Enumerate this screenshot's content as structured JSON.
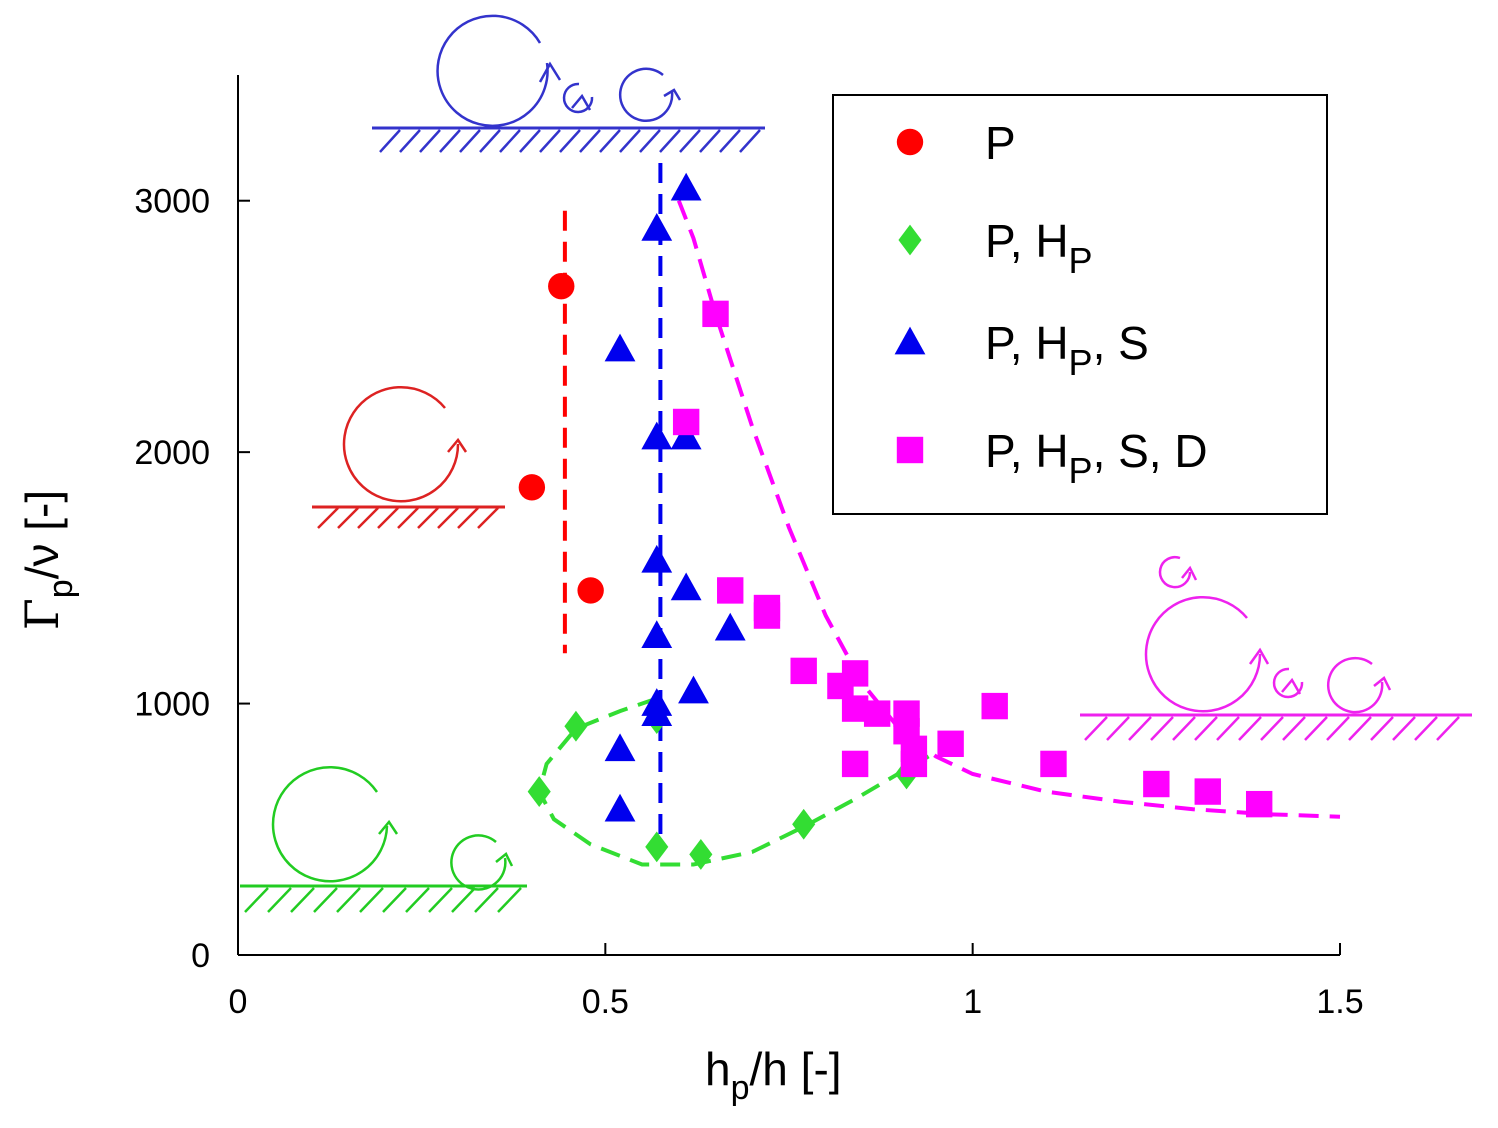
{
  "chart_data": {
    "type": "scatter",
    "title": "",
    "xlabel": {
      "main": "h",
      "sub": "p",
      "rest": "/h  [-]"
    },
    "ylabel": {
      "greek": "Γ",
      "sub": "p",
      "rest": "/ν [-]"
    },
    "xlim": [
      0,
      1.5
    ],
    "ylim": [
      0,
      3500
    ],
    "x_ticks": [
      {
        "v": 0,
        "label": "0"
      },
      {
        "v": 0.5,
        "label": "0.5"
      },
      {
        "v": 1,
        "label": "1"
      },
      {
        "v": 1.5,
        "label": "1.5"
      }
    ],
    "y_ticks": [
      {
        "v": 0,
        "label": "0"
      },
      {
        "v": 1000,
        "label": "1000"
      },
      {
        "v": 2000,
        "label": "2000"
      },
      {
        "v": 3000,
        "label": "3000"
      }
    ],
    "grid": false,
    "legend_position": "top-right",
    "series": [
      {
        "id": "P",
        "legend": [
          {
            "t": "P"
          }
        ],
        "marker": "circle",
        "color": "#ff0000",
        "points": [
          [
            0.44,
            2660
          ],
          [
            0.4,
            1860
          ],
          [
            0.48,
            1450
          ]
        ]
      },
      {
        "id": "P-Hp",
        "legend": [
          {
            "t": "P, H"
          },
          {
            "t": "P",
            "sub": true
          }
        ],
        "marker": "diamond",
        "color": "#33dd33",
        "points": [
          [
            0.46,
            910
          ],
          [
            0.41,
            650
          ],
          [
            0.57,
            940
          ],
          [
            0.57,
            430
          ],
          [
            0.63,
            400
          ],
          [
            0.77,
            520
          ],
          [
            0.91,
            720
          ]
        ]
      },
      {
        "id": "P-Hp-S",
        "legend": [
          {
            "t": "P, H"
          },
          {
            "t": "P",
            "sub": true
          },
          {
            "t": ", S"
          }
        ],
        "marker": "triangle",
        "color": "#0000ee",
        "points": [
          [
            0.61,
            3050
          ],
          [
            0.57,
            2890
          ],
          [
            0.52,
            2410
          ],
          [
            0.57,
            2060
          ],
          [
            0.61,
            2060
          ],
          [
            0.57,
            1570
          ],
          [
            0.61,
            1460
          ],
          [
            0.57,
            1270
          ],
          [
            0.67,
            1300
          ],
          [
            0.62,
            1050
          ],
          [
            0.57,
            1000
          ],
          [
            0.57,
            960
          ],
          [
            0.52,
            820
          ],
          [
            0.52,
            580
          ]
        ]
      },
      {
        "id": "P-Hp-S-D",
        "legend": [
          {
            "t": "P, H"
          },
          {
            "t": "P",
            "sub": true
          },
          {
            "t": ", S, D"
          }
        ],
        "marker": "square",
        "color": "#ff00ff",
        "points": [
          [
            0.65,
            2550
          ],
          [
            0.61,
            2120
          ],
          [
            0.67,
            1450
          ],
          [
            0.72,
            1380
          ],
          [
            0.72,
            1350
          ],
          [
            0.77,
            1130
          ],
          [
            0.84,
            1120
          ],
          [
            0.82,
            1070
          ],
          [
            0.84,
            980
          ],
          [
            0.87,
            960
          ],
          [
            0.91,
            960
          ],
          [
            0.91,
            890
          ],
          [
            0.92,
            820
          ],
          [
            0.92,
            760
          ],
          [
            0.97,
            840
          ],
          [
            0.84,
            760
          ],
          [
            1.03,
            990
          ],
          [
            1.11,
            760
          ],
          [
            1.25,
            680
          ],
          [
            1.32,
            650
          ],
          [
            1.39,
            600
          ]
        ]
      }
    ],
    "guide_lines": [
      {
        "id": "red-threshold",
        "color": "#ff0000",
        "points": [
          [
            0.445,
            2960
          ],
          [
            0.445,
            1200
          ]
        ]
      },
      {
        "id": "blue-threshold",
        "color": "#0000ee",
        "points": [
          [
            0.575,
            3150
          ],
          [
            0.575,
            430
          ]
        ]
      },
      {
        "id": "green-boundary",
        "color": "#33dd33",
        "points": [
          [
            0.57,
            1020
          ],
          [
            0.52,
            970
          ],
          [
            0.46,
            900
          ],
          [
            0.42,
            760
          ],
          [
            0.41,
            650
          ],
          [
            0.43,
            540
          ],
          [
            0.48,
            440
          ],
          [
            0.55,
            360
          ],
          [
            0.62,
            360
          ],
          [
            0.7,
            410
          ],
          [
            0.77,
            510
          ],
          [
            0.84,
            620
          ],
          [
            0.91,
            740
          ],
          [
            0.94,
            790
          ]
        ]
      },
      {
        "id": "magenta-boundary",
        "color": "#ff00ff",
        "points": [
          [
            0.6,
            3000
          ],
          [
            0.62,
            2850
          ],
          [
            0.65,
            2550
          ],
          [
            0.7,
            2100
          ],
          [
            0.75,
            1700
          ],
          [
            0.8,
            1350
          ],
          [
            0.85,
            1080
          ],
          [
            0.9,
            900
          ],
          [
            0.95,
            790
          ],
          [
            1.0,
            720
          ],
          [
            1.1,
            650
          ],
          [
            1.2,
            610
          ],
          [
            1.3,
            580
          ],
          [
            1.4,
            560
          ],
          [
            1.5,
            550
          ]
        ]
      }
    ]
  }
}
